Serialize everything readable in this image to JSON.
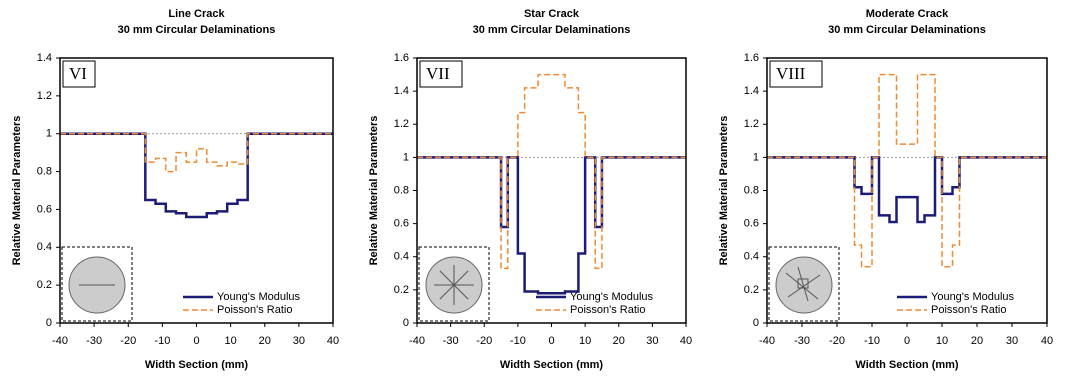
{
  "chart_data": [
    {
      "type": "line",
      "title": "Line Crack",
      "subtitle": "30 mm Circular Delaminations",
      "annotation": "VI",
      "x_label": "Width Section (mm)",
      "y_label": "Relative Material Parameters",
      "x": [
        -40,
        -15,
        -15,
        -12,
        -12,
        -9,
        -9,
        -6,
        -6,
        -3,
        -3,
        0,
        0,
        3,
        3,
        6,
        6,
        9,
        9,
        12,
        12,
        15,
        15,
        40
      ],
      "series": [
        {
          "name": "Young's Modulus",
          "color": "#1c1c78",
          "dashed": false,
          "values": [
            1,
            1,
            0.65,
            0.65,
            0.63,
            0.63,
            0.59,
            0.59,
            0.58,
            0.58,
            0.56,
            0.56,
            0.56,
            0.56,
            0.58,
            0.58,
            0.59,
            0.59,
            0.63,
            0.63,
            0.65,
            0.65,
            1,
            1
          ]
        },
        {
          "name": "Poisson's Ratio",
          "color": "#f08a30",
          "dashed": true,
          "values": [
            1,
            1,
            0.85,
            0.85,
            0.87,
            0.87,
            0.8,
            0.8,
            0.9,
            0.9,
            0.85,
            0.85,
            0.92,
            0.92,
            0.85,
            0.85,
            0.83,
            0.83,
            0.85,
            0.85,
            0.84,
            0.84,
            1,
            1
          ]
        }
      ],
      "reference_line": 1,
      "xlim": [
        -40,
        40
      ],
      "xticks": [
        -40,
        -30,
        -20,
        -10,
        0,
        10,
        20,
        30,
        40
      ],
      "ylim": [
        0,
        1.4
      ],
      "yticks": [
        0,
        0.2,
        0.4,
        0.6,
        0.8,
        1,
        1.2,
        1.4
      ]
    },
    {
      "type": "line",
      "title": "Star Crack",
      "subtitle": "30 mm Circular Delaminations",
      "annotation": "VII",
      "x_label": "Width Section (mm)",
      "y_label": "Relative Material Parameters",
      "x": [
        -40,
        -15,
        -15,
        -13,
        -13,
        -10,
        -10,
        -8,
        -8,
        -4,
        -4,
        4,
        4,
        8,
        8,
        10,
        10,
        13,
        13,
        15,
        15,
        40
      ],
      "series": [
        {
          "name": "Young's Modulus",
          "color": "#1c1c78",
          "dashed": false,
          "values": [
            1,
            1,
            0.58,
            0.58,
            1,
            1,
            0.42,
            0.42,
            0.19,
            0.19,
            0.18,
            0.18,
            0.19,
            0.19,
            0.42,
            0.42,
            1,
            1,
            0.58,
            0.58,
            1,
            1
          ]
        },
        {
          "name": "Poisson's Ratio",
          "color": "#f08a30",
          "dashed": true,
          "values": [
            1,
            1,
            0.33,
            0.33,
            1,
            1,
            1.27,
            1.27,
            1.42,
            1.42,
            1.5,
            1.5,
            1.42,
            1.42,
            1.27,
            1.27,
            1,
            1,
            0.33,
            0.33,
            1,
            1
          ]
        }
      ],
      "reference_line": 1,
      "xlim": [
        -40,
        40
      ],
      "xticks": [
        -40,
        -30,
        -20,
        -10,
        0,
        10,
        20,
        30,
        40
      ],
      "ylim": [
        0,
        1.6
      ],
      "yticks": [
        0,
        0.2,
        0.4,
        0.6,
        0.8,
        1,
        1.2,
        1.4,
        1.6
      ]
    },
    {
      "type": "line",
      "title": "Moderate Crack",
      "subtitle": "30 mm Circular Delaminations",
      "annotation": "VIII",
      "x_label": "Width Section (mm)",
      "y_label": "Relative Material Parameters",
      "x": [
        -40,
        -15,
        -15,
        -13,
        -13,
        -10,
        -10,
        -8,
        -8,
        -5,
        -5,
        -3,
        -3,
        3,
        3,
        5,
        5,
        8,
        8,
        10,
        10,
        13,
        13,
        15,
        15,
        40
      ],
      "series": [
        {
          "name": "Young's Modulus",
          "color": "#1c1c78",
          "dashed": false,
          "values": [
            1,
            1,
            0.82,
            0.82,
            0.78,
            0.78,
            1,
            1,
            0.65,
            0.65,
            0.61,
            0.61,
            0.76,
            0.76,
            0.61,
            0.61,
            0.65,
            0.65,
            1,
            1,
            0.78,
            0.78,
            0.82,
            0.82,
            1,
            1
          ]
        },
        {
          "name": "Poisson's Ratio",
          "color": "#f08a30",
          "dashed": true,
          "values": [
            1,
            1,
            0.47,
            0.47,
            0.34,
            0.34,
            1,
            1,
            1.5,
            1.5,
            1.5,
            1.5,
            1.08,
            1.08,
            1.5,
            1.5,
            1.5,
            1.5,
            1,
            1,
            0.34,
            0.34,
            0.47,
            0.47,
            1,
            1
          ]
        }
      ],
      "reference_line": 1,
      "xlim": [
        -40,
        40
      ],
      "xticks": [
        -40,
        -30,
        -20,
        -10,
        0,
        10,
        20,
        30,
        40
      ],
      "ylim": [
        0,
        1.6
      ],
      "yticks": [
        0,
        0.2,
        0.4,
        0.6,
        0.8,
        1,
        1.2,
        1.4,
        1.6
      ]
    }
  ]
}
